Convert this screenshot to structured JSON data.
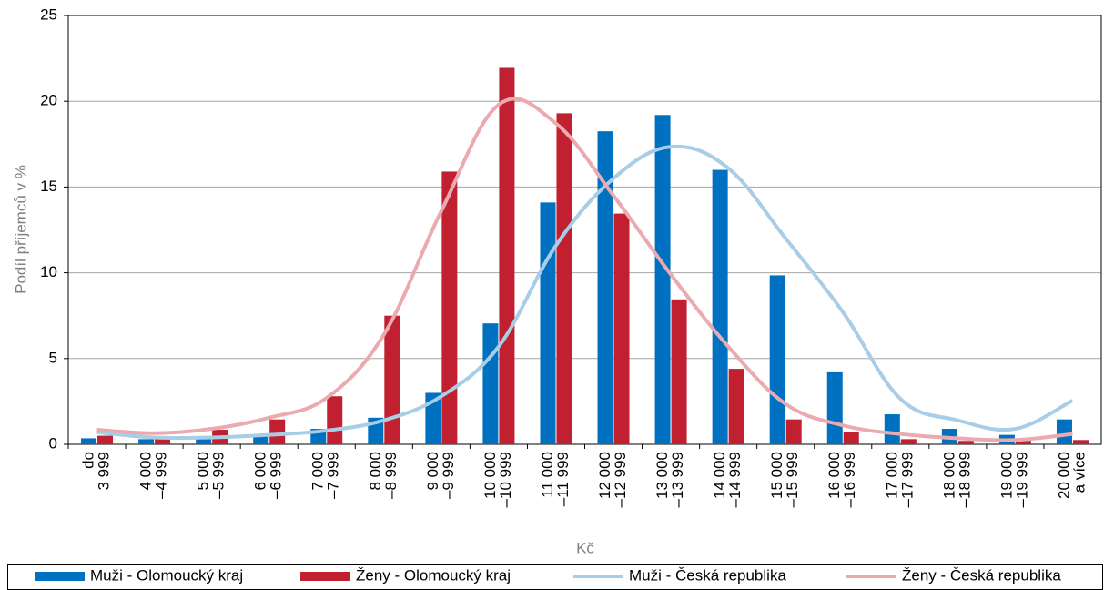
{
  "chart_data": {
    "type": "bar",
    "y_label": "Podíl příjemců v %",
    "x_label": "Kč",
    "categories": [
      [
        "do",
        "3 999"
      ],
      [
        "4 000",
        "–4 999"
      ],
      [
        "5 000",
        "–5 999"
      ],
      [
        "6 000",
        "–6 999"
      ],
      [
        "7 000",
        "–7 999"
      ],
      [
        "8 000",
        "–8 999"
      ],
      [
        "9 000",
        "–9 999"
      ],
      [
        "10 000",
        "–10 999"
      ],
      [
        "11 000",
        "–11 999"
      ],
      [
        "12 000",
        "–12 999"
      ],
      [
        "13 000",
        "–13 999"
      ],
      [
        "14 000",
        "–14 999"
      ],
      [
        "15 000",
        "–15 999"
      ],
      [
        "16 000",
        "–16 999"
      ],
      [
        "17 000",
        "–17 999"
      ],
      [
        "18 000",
        "–18 999"
      ],
      [
        "19 000",
        "–19 999"
      ],
      [
        "20 000",
        "a více"
      ]
    ],
    "series": [
      {
        "name": "Muži - Olomoucký kraj",
        "type": "bar",
        "color": "#0070c0",
        "values": [
          0.35,
          0.3,
          0.3,
          0.5,
          0.9,
          1.55,
          3.0,
          7.05,
          14.1,
          18.25,
          19.2,
          16.0,
          9.85,
          4.2,
          1.75,
          0.9,
          0.55,
          1.45
        ]
      },
      {
        "name": "Ženy - Olomoucký kraj",
        "type": "bar",
        "color": "#c0202f",
        "values": [
          0.5,
          0.35,
          0.85,
          1.45,
          2.8,
          7.5,
          15.9,
          21.95,
          19.3,
          13.45,
          8.45,
          4.4,
          1.45,
          0.7,
          0.3,
          0.2,
          0.2,
          0.25
        ]
      },
      {
        "name": "Muži - Česká republika",
        "type": "line",
        "color": "#a8cde6",
        "values": [
          0.7,
          0.4,
          0.4,
          0.55,
          0.8,
          1.4,
          2.8,
          5.7,
          11.6,
          15.5,
          17.35,
          16.1,
          12.0,
          7.7,
          2.65,
          1.4,
          0.9,
          2.55
        ]
      },
      {
        "name": "Ženy - Česká republika",
        "type": "line",
        "color": "#eaaab0",
        "values": [
          0.85,
          0.65,
          0.9,
          1.55,
          2.7,
          6.4,
          13.6,
          19.8,
          18.7,
          14.5,
          9.9,
          5.7,
          2.35,
          1.1,
          0.6,
          0.35,
          0.25,
          0.6
        ]
      }
    ],
    "ylim": [
      0,
      25
    ],
    "yticks": [
      0,
      5,
      10,
      15,
      20,
      25
    ],
    "grid": true,
    "legend": "bottom"
  }
}
